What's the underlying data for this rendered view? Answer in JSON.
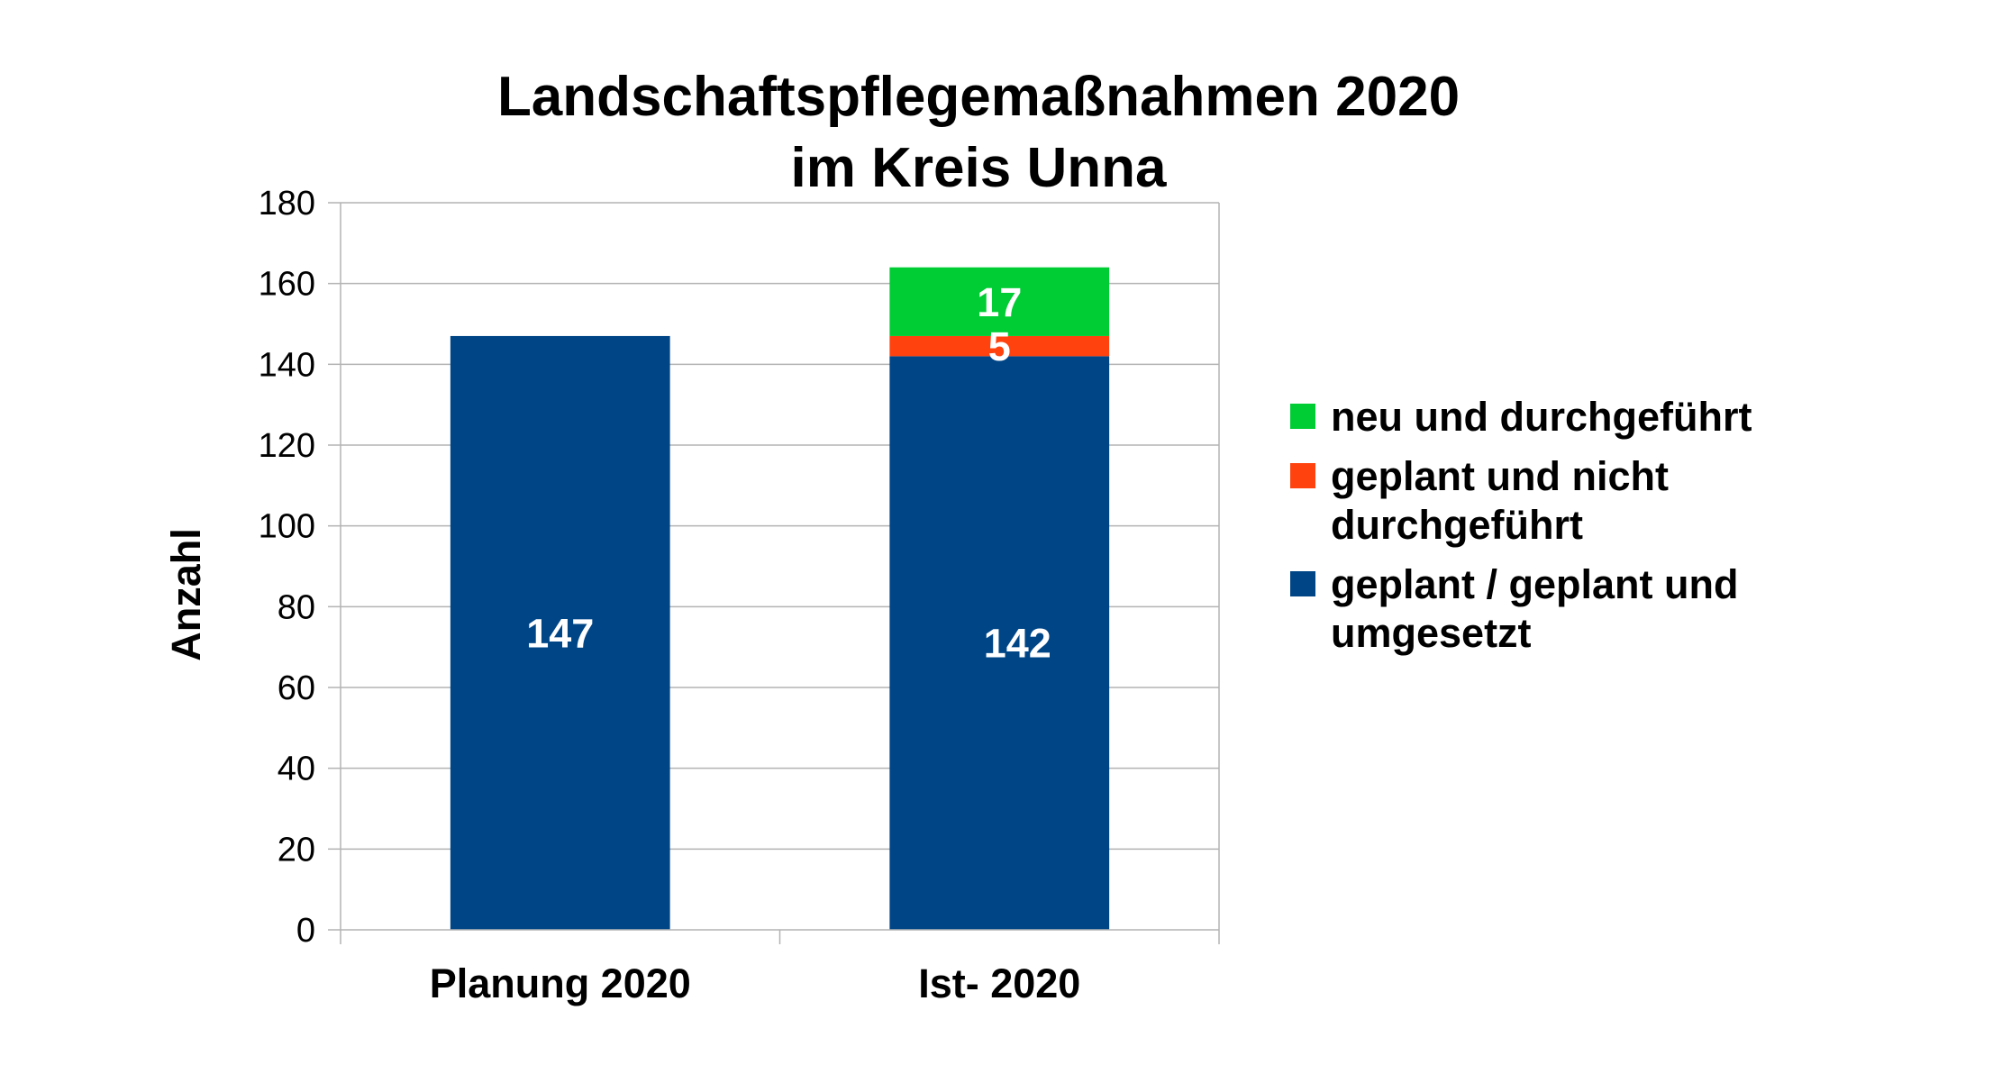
{
  "chart_data": {
    "type": "bar",
    "stacked": true,
    "title_lines": [
      "Landschaftspflegemaßnahmen 2020",
      "im Kreis Unna"
    ],
    "xlabel": "",
    "ylabel": "Anzahl",
    "ylim": [
      0,
      180
    ],
    "yticks": [
      0,
      20,
      40,
      60,
      80,
      100,
      120,
      140,
      160,
      180
    ],
    "grid": true,
    "legend_position": "right",
    "categories": [
      "Planung 2020",
      "Ist- 2020"
    ],
    "series": [
      {
        "name": "geplant / geplant und umgesetzt",
        "legend_lines": [
          "geplant / geplant und",
          "umgesetzt"
        ],
        "color": "#004586",
        "values": [
          147,
          142
        ],
        "labels": [
          "147",
          "142"
        ]
      },
      {
        "name": "geplant und nicht durchgeführt",
        "legend_lines": [
          "geplant und nicht",
          "durchgeführt"
        ],
        "color": "#ff420e",
        "values": [
          0,
          5
        ],
        "labels": [
          "",
          "5"
        ]
      },
      {
        "name": "neu und durchgeführt",
        "legend_lines": [
          "neu und durchgeführt"
        ],
        "color": "#00cc33",
        "values": [
          0,
          17
        ],
        "labels": [
          "",
          "17"
        ]
      }
    ]
  }
}
